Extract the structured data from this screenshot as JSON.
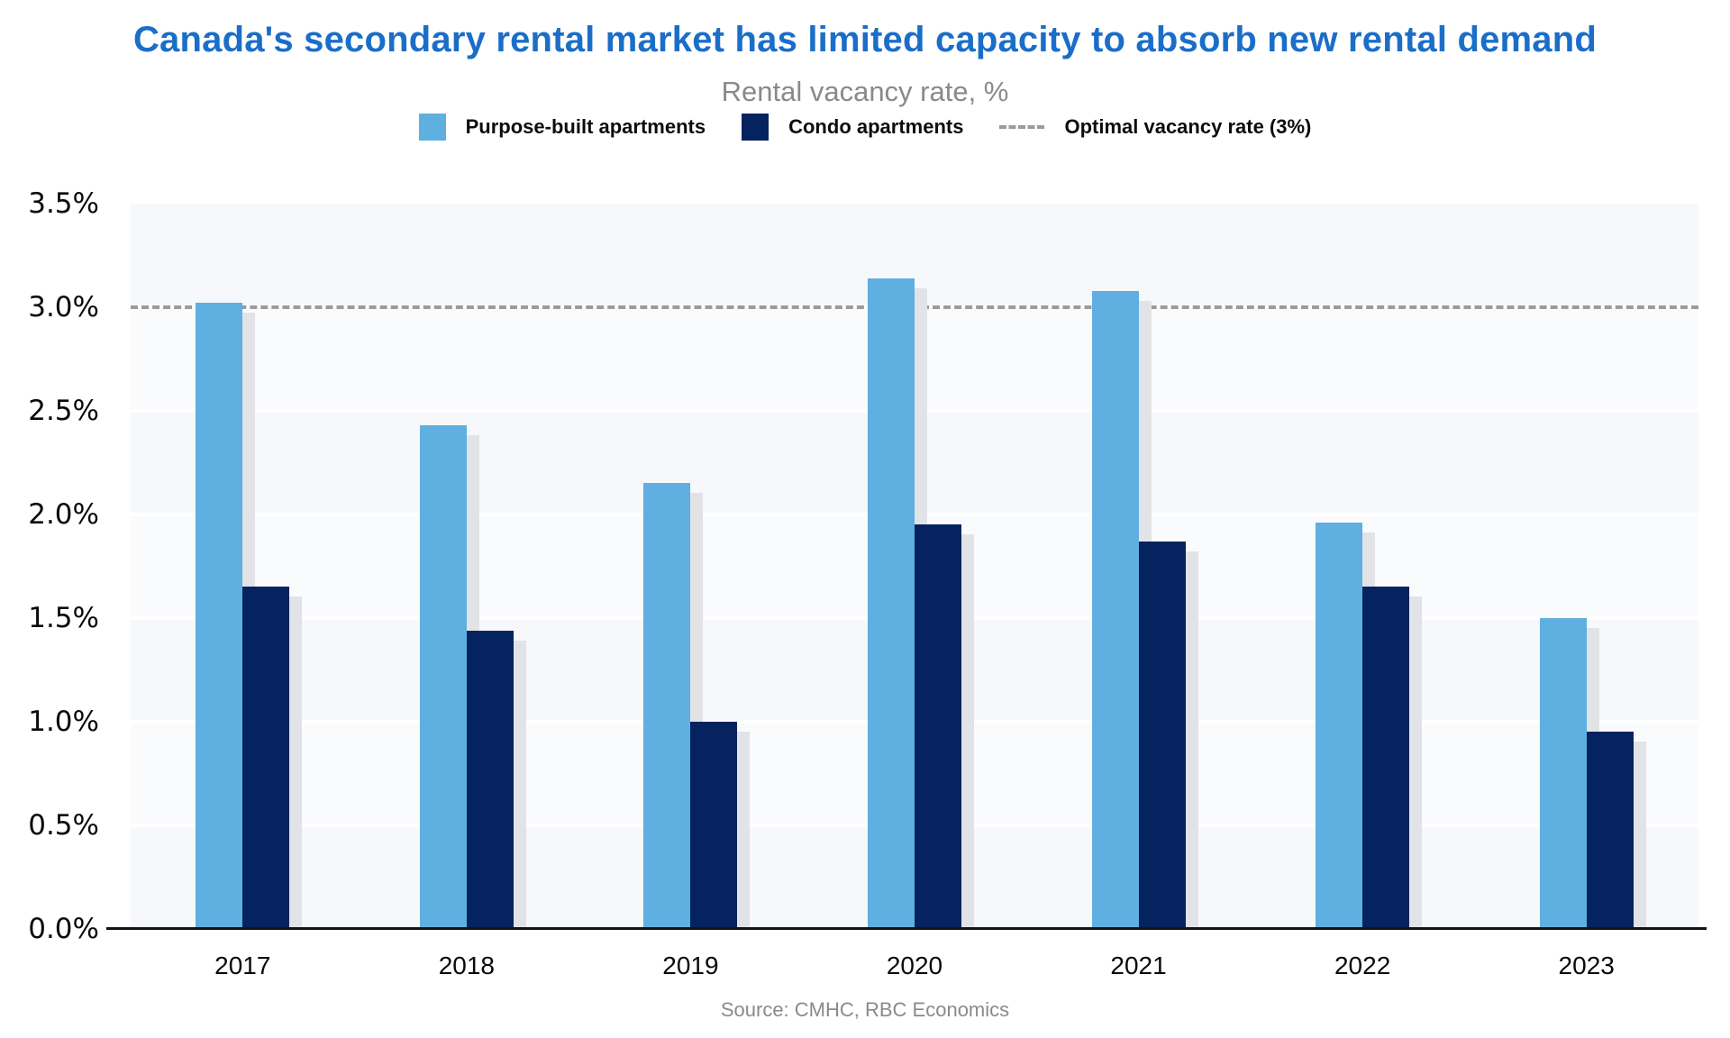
{
  "title": "Canada's secondary rental market has limited capacity to absorb new rental demand",
  "subtitle": "Rental vacancy rate, %",
  "source": "Source: CMHC, RBC Economics",
  "colors": {
    "title": "#1b6ec8",
    "purpose_built": "#5fafe0",
    "condo": "#04235f",
    "bar_shadow": "#e1e3e7",
    "reference_line": "#9b9b9b",
    "plot_band_a": "#f6f8fb",
    "plot_band_b": "#fafbfd",
    "axis_line": "#141414",
    "muted_text": "#8a8a8a"
  },
  "legend": {
    "items": [
      {
        "label": "Purpose-built apartments",
        "swatch": "square",
        "color": "#5fafe0"
      },
      {
        "label": "Condo apartments",
        "swatch": "square",
        "color": "#04235f"
      },
      {
        "label": "Optimal vacancy rate (3%)",
        "swatch": "dashed-line",
        "color": "#9b9b9b"
      }
    ]
  },
  "chart_data": {
    "type": "bar",
    "title": "Canada's secondary rental market has limited capacity to absorb new rental demand",
    "subtitle": "Rental vacancy rate, %",
    "categories": [
      "2017",
      "2018",
      "2019",
      "2020",
      "2021",
      "2022",
      "2023"
    ],
    "series": [
      {
        "name": "Purpose-built apartments",
        "color": "#5fafe0",
        "values": [
          3.02,
          2.43,
          2.15,
          3.14,
          3.08,
          1.96,
          1.5
        ]
      },
      {
        "name": "Condo apartments",
        "color": "#04235f",
        "values": [
          1.65,
          1.44,
          1.0,
          1.95,
          1.87,
          1.65,
          0.95
        ]
      }
    ],
    "reference_line": {
      "label": "Optimal vacancy rate (3%)",
      "value": 3.0
    },
    "ylabel": "Rental vacancy rate, %",
    "xlabel": "",
    "ylim": [
      0,
      3.5
    ],
    "y_ticks": [
      "3.5%",
      "3.0%",
      "2.5%",
      "2.0%",
      "1.5%",
      "1.0%",
      "0.5%",
      "0.0%"
    ],
    "grid": "horizontal-bands",
    "legend_position": "top"
  }
}
